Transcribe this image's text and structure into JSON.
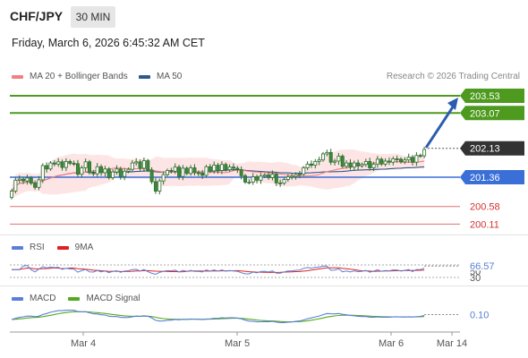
{
  "header": {
    "symbol": "CHF/JPY",
    "timeframe": "30 MIN",
    "timestamp": "Friday, March 6, 2026 6:45:32 AM CET"
  },
  "legend": {
    "ma20_label": "MA 20 + Bollinger Bands",
    "ma50_label": "MA 50",
    "research": "Research © 2026 Trading Central",
    "rsi_label": "RSI",
    "rsi_ma_label": "9MA",
    "macd_label": "MACD",
    "macd_signal_label": "MACD Signal"
  },
  "colors": {
    "ma20": "#f28080",
    "ma50": "#2c5a8f",
    "bollinger_fill": "#fde0e0",
    "candle": "#3a8a3a",
    "green_level": "#4d9a1e",
    "blue_level": "#3a6fd8",
    "red_level": "#e07070",
    "current": "#333333",
    "arrow": "#2a5db0",
    "macd": "#5a7fd6",
    "macd_signal": "#56a820"
  },
  "chart_data": [
    {
      "type": "candlestick",
      "ylim": [
        199.9,
        203.9
      ],
      "x_ticks": [
        "Mar 4",
        "Mar 5",
        "Mar 6",
        "Mar 14"
      ],
      "levels": [
        {
          "label": "203.53",
          "value": 203.53,
          "kind": "resistance"
        },
        {
          "label": "203.07",
          "value": 203.07,
          "kind": "resistance"
        },
        {
          "label": "202.13",
          "value": 202.13,
          "kind": "current"
        },
        {
          "label": "201.36",
          "value": 201.36,
          "kind": "pivot"
        },
        {
          "label": "200.58",
          "value": 200.58,
          "kind": "support"
        },
        {
          "label": "200.11",
          "value": 200.11,
          "kind": "support"
        }
      ],
      "target": 203.53,
      "close": [
        200.99,
        201.28,
        201.31,
        201.26,
        201.34,
        201.2,
        201.09,
        201.29,
        201.67,
        201.58,
        201.74,
        201.71,
        201.77,
        201.62,
        201.78,
        201.73,
        201.72,
        201.44,
        201.61,
        201.77,
        201.48,
        201.45,
        201.64,
        201.48,
        201.58,
        201.35,
        201.5,
        201.58,
        201.38,
        201.52,
        201.57,
        201.74,
        201.77,
        201.6,
        201.8,
        201.55,
        201.24,
        200.99,
        201.26,
        201.43,
        201.54,
        201.52,
        201.63,
        201.38,
        201.6,
        201.46,
        201.61,
        201.48,
        201.47,
        201.41,
        201.64,
        201.53,
        201.68,
        201.54,
        201.7,
        201.56,
        201.63,
        201.6,
        201.56,
        201.4,
        201.23,
        201.23,
        201.37,
        201.28,
        201.39,
        201.42,
        201.35,
        201.44,
        201.21,
        201.2,
        201.3,
        201.37,
        201.38,
        201.43,
        201.44,
        201.61,
        201.71,
        201.68,
        201.78,
        201.82,
        201.98,
        202.02,
        201.76,
        201.79,
        201.92,
        201.65,
        201.74,
        201.63,
        201.74,
        201.66,
        201.7,
        201.78,
        201.61,
        201.71,
        201.84,
        201.71,
        201.79,
        201.76,
        201.85,
        201.84,
        201.77,
        201.82,
        201.89,
        201.76,
        201.94,
        201.93,
        202.1
      ]
    },
    {
      "type": "line",
      "title": "RSI",
      "y_ticks": [
        70,
        50,
        30
      ],
      "last_value": 66.57,
      "series": [
        {
          "name": "RSI"
        },
        {
          "name": "9MA"
        }
      ]
    },
    {
      "type": "line",
      "title": "MACD",
      "last_value": 0.1,
      "series": [
        {
          "name": "MACD"
        },
        {
          "name": "MACD Signal"
        }
      ]
    }
  ]
}
